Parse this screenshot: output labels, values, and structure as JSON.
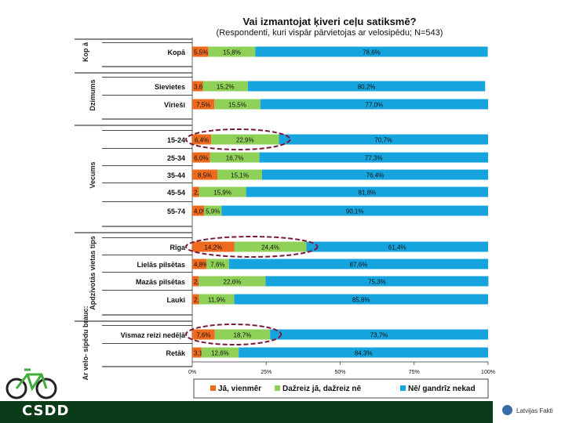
{
  "header": {
    "title": "Vai izmantojat ķiveri ceļu satiksmē?",
    "subtitle": "(Respondenti, kuri vispār pārvietojas ar velosipēdu; N=543)"
  },
  "chart_data": {
    "type": "bar",
    "orientation": "horizontal",
    "stacked": true,
    "xlim": [
      0,
      100
    ],
    "xticks": [
      "0%",
      "25%",
      "50%",
      "75%",
      "100%"
    ],
    "colors": {
      "always": "#ee6a1e",
      "sometimes": "#8fd158",
      "never": "#16a4de"
    },
    "legend": [
      "Jā, vienmēr",
      "Dažreiz jā, dažreiz nē",
      "Nē/ gandrīz nekad"
    ],
    "groups": [
      {
        "label": "Kop ā",
        "rows": [
          {
            "label": "Kopā",
            "values": [
              5.5,
              15.8,
              78.6
            ],
            "labels": [
              "5,5%",
              "15,8%",
              "78,6%"
            ]
          }
        ]
      },
      {
        "label": "Dzimums",
        "rows": [
          {
            "label": "Sievietes",
            "values": [
              3.6,
              15.2,
              80.2
            ],
            "labels": [
              "3,6%",
              "15,2%",
              "80,2%"
            ]
          },
          {
            "label": "Vīrieši",
            "values": [
              7.5,
              15.5,
              77.0
            ],
            "labels": [
              "7,5%",
              "15,5%",
              "77,0%"
            ]
          }
        ]
      },
      {
        "label": "Vecums",
        "rows": [
          {
            "label": "15-24",
            "values": [
              6.4,
              22.9,
              70.7
            ],
            "labels": [
              "6,4%",
              "22,9%",
              "70,7%"
            ],
            "highlight": true
          },
          {
            "label": "25-34",
            "values": [
              6.0,
              16.7,
              77.3
            ],
            "labels": [
              "6,0%",
              "16,7%",
              "77,3%"
            ]
          },
          {
            "label": "35-44",
            "values": [
              8.5,
              15.1,
              76.4
            ],
            "labels": [
              "8,5%",
              "15,1%",
              "76,4%"
            ]
          },
          {
            "label": "45-54",
            "values": [
              2.3,
              15.9,
              81.8
            ],
            "labels": [
              "2,3%",
              "15,9%",
              "81,8%"
            ]
          },
          {
            "label": "55-74",
            "values": [
              4.0,
              5.9,
              90.1
            ],
            "labels": [
              "4,0%",
              "5,9%",
              "90,1%"
            ]
          }
        ]
      },
      {
        "label": "Apdzīvotās vietas tips",
        "rows": [
          {
            "label": "Rīga",
            "values": [
              14.2,
              24.4,
              61.4
            ],
            "labels": [
              "14,2%",
              "24,4%",
              "61,4%"
            ],
            "highlight": true
          },
          {
            "label": "Lielās pilsētas",
            "values": [
              4.8,
              7.6,
              87.6
            ],
            "labels": [
              "4,8%",
              "7,6%",
              "87,6%"
            ]
          },
          {
            "label": "Mazās pilsētas",
            "values": [
              2.2,
              22.6,
              75.3
            ],
            "labels": [
              "2,2%",
              "22,6%",
              "75,3%"
            ]
          },
          {
            "label": "Lauki",
            "values": [
              2.3,
              11.9,
              85.8
            ],
            "labels": [
              "2,3%",
              "11,9%",
              "85,8%"
            ]
          }
        ]
      },
      {
        "label": "Ar velo- sipēdu brauc:",
        "rows": [
          {
            "label": "Vismaz reizi nedēļā",
            "values": [
              7.6,
              18.7,
              73.7
            ],
            "labels": [
              "7,6%",
              "18,7%",
              "73,7%"
            ],
            "highlight": true
          },
          {
            "label": "Retāk",
            "values": [
              3.1,
              12.6,
              84.3
            ],
            "labels": [
              "3,1%",
              "12,6%",
              "84,3%"
            ]
          }
        ]
      }
    ]
  },
  "footer": {
    "brand_left": "CSDD",
    "brand_right": "Latvijas Fakti"
  }
}
